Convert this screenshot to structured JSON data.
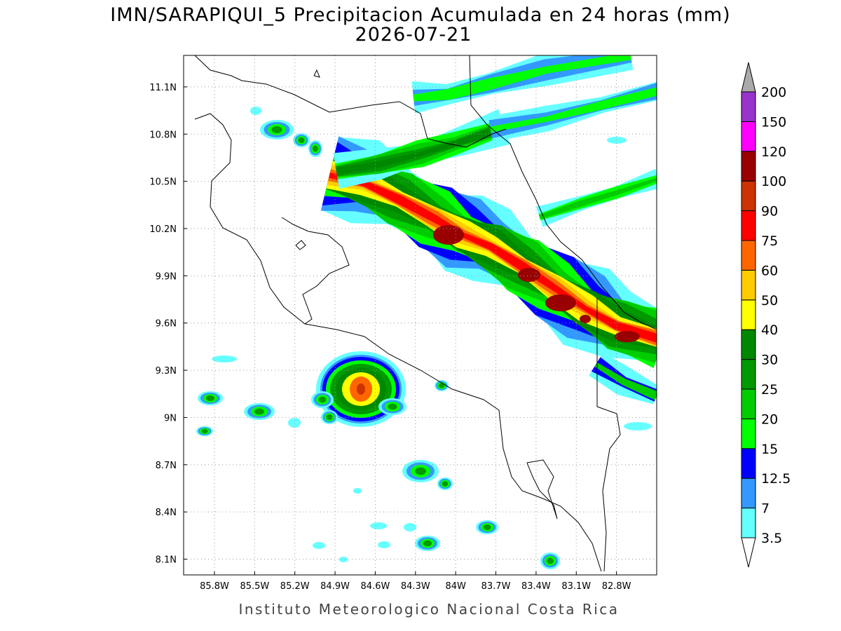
{
  "title": "IMN/SARAPIQUI_5 Precipitacion Acumulada en 24 horas (mm)",
  "subtitle": "2026-07-21",
  "footer": "Instituto Meteorologico Nacional Costa Rica",
  "map": {
    "xlim": [
      -86.03,
      -82.5
    ],
    "ylim": [
      8.0,
      11.3
    ],
    "grid": true,
    "lon_ticks": [
      {
        "value": -85.8,
        "label": "85.8W"
      },
      {
        "value": -85.5,
        "label": "85.5W"
      },
      {
        "value": -85.2,
        "label": "85.2W"
      },
      {
        "value": -84.9,
        "label": "84.9W"
      },
      {
        "value": -84.6,
        "label": "84.6W"
      },
      {
        "value": -84.3,
        "label": "84.3W"
      },
      {
        "value": -84.0,
        "label": "84W"
      },
      {
        "value": -83.7,
        "label": "83.7W"
      },
      {
        "value": -83.4,
        "label": "83.4W"
      },
      {
        "value": -83.1,
        "label": "83.1W"
      },
      {
        "value": -82.8,
        "label": "82.8W"
      }
    ],
    "lat_ticks": [
      {
        "value": 8.1,
        "label": "8.1N"
      },
      {
        "value": 8.4,
        "label": "8.4N"
      },
      {
        "value": 8.7,
        "label": "8.7N"
      },
      {
        "value": 9.0,
        "label": "9N"
      },
      {
        "value": 9.3,
        "label": "9.3N"
      },
      {
        "value": 9.6,
        "label": "9.6N"
      },
      {
        "value": 9.9,
        "label": "9.9N"
      },
      {
        "value": 10.2,
        "label": "10.2N"
      },
      {
        "value": 10.5,
        "label": "10.5N"
      },
      {
        "value": 10.8,
        "label": "10.8N"
      },
      {
        "value": 11.1,
        "label": "11.1N"
      }
    ]
  },
  "colorbar": {
    "levels": [
      3.5,
      7,
      12.5,
      15,
      20,
      25,
      30,
      40,
      50,
      60,
      75,
      90,
      100,
      120,
      150,
      200
    ],
    "colors": [
      "#3399ff",
      "#0000ff",
      "#00ff00",
      "#00cc00",
      "#009900",
      "#008800",
      "#ffff00",
      "#ffcc00",
      "#ff6600",
      "#ff0000",
      "#cc3300",
      "#990000",
      "#ff00ff",
      "#9933cc",
      "#f5f5f5"
    ],
    "under_color": "#66ffff",
    "over_color": "#aaaaaa"
  }
}
